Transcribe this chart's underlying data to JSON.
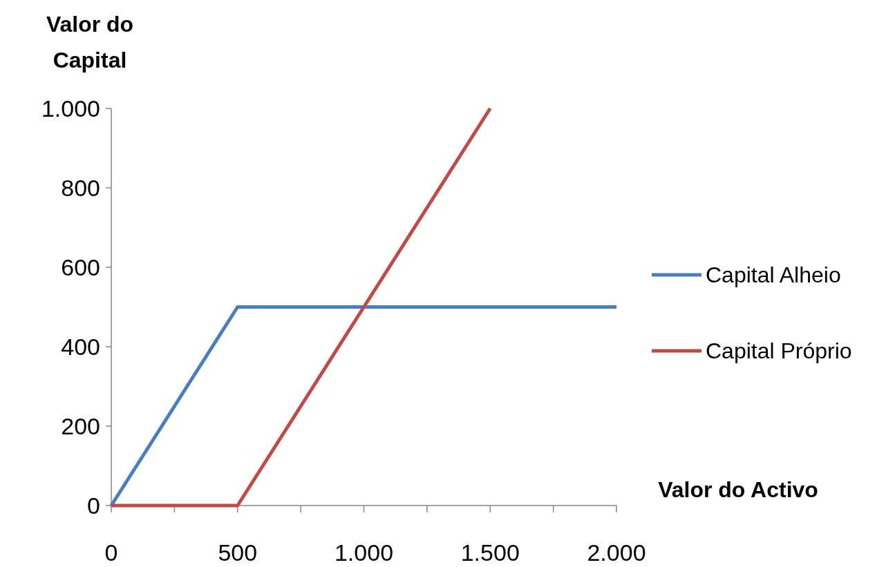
{
  "chart_data": {
    "type": "line",
    "xlabel": "Valor do Activo",
    "ylabel": "Valor do Capital",
    "xlim": [
      0,
      2000
    ],
    "ylim": [
      0,
      1000
    ],
    "xticks": [
      0,
      {
        "value": 250,
        "label": null
      },
      500,
      {
        "value": 750,
        "label": null
      },
      {
        "value": 1000,
        "label": "1.000"
      },
      {
        "value": 1250,
        "label": null
      },
      {
        "value": 1500,
        "label": "1.500"
      },
      {
        "value": 1750,
        "label": null
      },
      {
        "value": 2000,
        "label": "2.000"
      }
    ],
    "yticks": [
      0,
      200,
      400,
      600,
      800,
      {
        "value": 1000,
        "label": "1.000"
      }
    ],
    "series": [
      {
        "name": "Capital Alheio",
        "color": "#4a7ebb",
        "x": [
          0,
          500,
          2000
        ],
        "values": [
          0,
          500,
          500
        ]
      },
      {
        "name": "Capital Próprio",
        "color": "#be4b48",
        "x": [
          0,
          500,
          1500
        ],
        "values": [
          0,
          0,
          1000
        ]
      }
    ],
    "legend": "right",
    "grid": false,
    "marker": "none",
    "line_style": "solid"
  }
}
